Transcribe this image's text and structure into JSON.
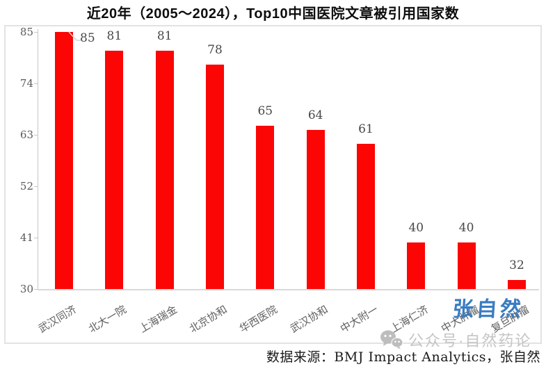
{
  "title": "近20年（2005～2024），Top10中国医院文章被引用国家数",
  "chart_data": {
    "type": "bar",
    "title": "近20年（2005～2024），Top10中国医院文章被引用国家数",
    "categories": [
      "武汉同济",
      "北大一院",
      "上海瑞金",
      "北京协和",
      "华西医院",
      "武汉协和",
      "中大附一",
      "上海仁济",
      "中大肿瘤",
      "复旦肿瘤"
    ],
    "values": [
      85,
      81,
      81,
      78,
      65,
      64,
      61,
      40,
      40,
      32
    ],
    "xlabel": "",
    "ylabel": "",
    "ylim": [
      30,
      85
    ],
    "yticks": [
      30,
      41,
      52,
      63,
      74,
      85
    ],
    "grid": false,
    "legend": false,
    "bar_color": "#fb0505",
    "axis_color": "#c6c6c6",
    "tick_label_color": "#595959",
    "data_label_color": "#474747",
    "category_label_color": "#606060"
  },
  "footer": {
    "source_text": "数据来源：BMJ Impact Analytics，张自然"
  },
  "watermarks": {
    "signature_text": "张自然",
    "signature_color": "#3a7cc1",
    "wechat_text": "公众号·自然药论",
    "wechat_color": "#c5c5c5",
    "wechat_icon_color": "#bdbdbd"
  }
}
